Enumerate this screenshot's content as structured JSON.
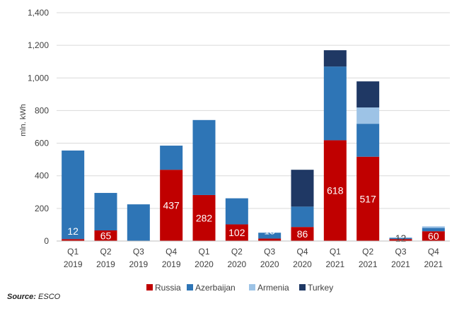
{
  "chart_data": {
    "type": "bar",
    "stacked": true,
    "title": "",
    "xlabel": "",
    "ylabel": "mln. kWh",
    "ylim": [
      0,
      1400
    ],
    "yticks": [
      0,
      200,
      400,
      600,
      800,
      1000,
      1200,
      1400
    ],
    "ytick_labels": [
      "0",
      "200",
      "400",
      "600",
      "800",
      "1,000",
      "1,200",
      "1,400"
    ],
    "grid": true,
    "legend_position": "bottom",
    "categories": [
      [
        "Q1",
        "2019"
      ],
      [
        "Q2",
        "2019"
      ],
      [
        "Q3",
        "2019"
      ],
      [
        "Q4",
        "2019"
      ],
      [
        "Q1",
        "2020"
      ],
      [
        "Q2",
        "2020"
      ],
      [
        "Q3",
        "2020"
      ],
      [
        "Q4",
        "2020"
      ],
      [
        "Q1",
        "2021"
      ],
      [
        "Q2",
        "2021"
      ],
      [
        "Q3",
        "2021"
      ],
      [
        "Q4",
        "2021"
      ]
    ],
    "series": [
      {
        "name": "Russia",
        "color": "#c00000",
        "values": [
          12,
          65,
          0,
          437,
          282,
          102,
          15,
          86,
          618,
          517,
          12,
          60
        ]
      },
      {
        "name": "Azerbaijan",
        "color": "#2e75b6",
        "values": [
          543,
          230,
          225,
          148,
          460,
          160,
          36,
          125,
          452,
          202,
          8,
          20
        ]
      },
      {
        "name": "Armenia",
        "color": "#9dc3e6",
        "values": [
          0,
          0,
          0,
          0,
          0,
          0,
          0,
          0,
          0,
          100,
          0,
          10
        ]
      },
      {
        "name": "Turkey",
        "color": "#1f3864",
        "values": [
          0,
          0,
          0,
          0,
          0,
          0,
          0,
          226,
          100,
          160,
          0,
          0
        ]
      }
    ],
    "data_labels": {
      "series": "Russia",
      "values": [
        "12",
        "65",
        "",
        "437",
        "282",
        "102",
        "15",
        "86",
        "618",
        "517",
        "12",
        "60"
      ]
    }
  },
  "source": {
    "prefix": "Source:",
    "text": " ESCO"
  }
}
